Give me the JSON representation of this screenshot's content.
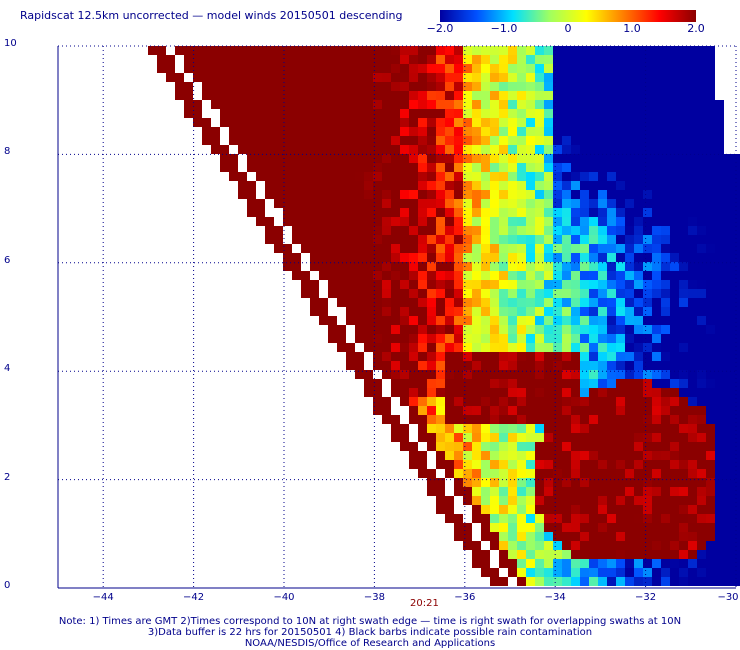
{
  "title": "Rapidscat 12.5km uncorrected — model winds 20150501 descending",
  "colorbar": {
    "labels": [
      "−2.0",
      "−1.0",
      "0",
      "1.0",
      "2.0"
    ],
    "stops": [
      "#0000a0",
      "#0050ff",
      "#00e0ff",
      "#a0ff60",
      "#ffff00",
      "#ff8000",
      "#ff0000",
      "#8b0000"
    ]
  },
  "y_ticks": [
    "10",
    "8",
    "6",
    "4",
    "2",
    "0"
  ],
  "x_ticks": [
    "−44",
    "−42",
    "−40",
    "−38",
    "−36",
    "−34",
    "−32",
    "−30"
  ],
  "timestamp": "20:21",
  "notes": [
    "Note: 1) Times are GMT 2)Times correspond to 10N at right swath edge — time is right swath for overlapping swaths at 10N",
    "3)Data buffer is 22 hrs for 20150501 4) Black barbs indicate possible rain contamination",
    "NOAA/NESDIS/Office of Research and Applications"
  ],
  "map_data": {
    "lon_range": [
      -45,
      -30
    ],
    "lat_range": [
      0,
      10
    ],
    "field": "wind speed difference (scatterometer minus model)",
    "regions": [
      {
        "name": "strong positive band",
        "value": 2.0,
        "lon": [
          -41,
          -36
        ],
        "lat": [
          3.5,
          9.5
        ]
      },
      {
        "name": "southeast positive patch",
        "value": 2.0,
        "lon": [
          -35,
          -30.5
        ],
        "lat": [
          0.5,
          4
        ]
      },
      {
        "name": "northeast negative patch",
        "value": -2.0,
        "lon": [
          -34,
          -30
        ],
        "lat": [
          7,
          9.5
        ]
      }
    ]
  }
}
